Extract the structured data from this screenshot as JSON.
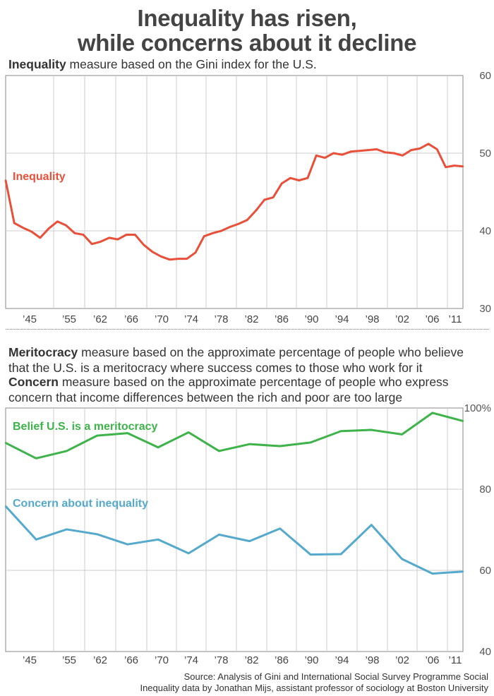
{
  "title_lines": [
    "Inequality has risen,",
    "while concerns about it decline"
  ],
  "top_subtitle": {
    "bold": "Inequality",
    "rest": " measure based on the Gini index for the U.S."
  },
  "bottom_subtitle_1": {
    "bold": "Meritocracy",
    "rest": " measure based on the approximate percentage of people who believe",
    "line2": "that the U.S. is a meritocracy where success comes to those who work for it"
  },
  "bottom_subtitle_2": {
    "bold": "Concern",
    "rest": " measure based on the approximate percentage of people who express",
    "line2": "concern that income differences between the rich and poor are too large"
  },
  "source_lines": [
    "Source: Analysis of Gini and International Social Survey Programme Social",
    "Inequality data by Jonathan Mijs, assistant professor of sociology at Boston University"
  ],
  "colors": {
    "inequality": "#e8503a",
    "meritocracy": "#3db34a",
    "concern": "#55a9cc",
    "grid": "#cccccc"
  },
  "chart_data": [
    {
      "type": "line",
      "xlabels": [
        "'45",
        "'55",
        "'62",
        "'66",
        "'70",
        "'74",
        "'78",
        "'82",
        "'86",
        "'90",
        "'94",
        "'98",
        "'02",
        "'06",
        "'11"
      ],
      "ylim": [
        30,
        60
      ],
      "yticks": [
        "30",
        "40",
        "50",
        "60"
      ],
      "series": [
        {
          "name": "Inequality",
          "color": "#e8503a",
          "values": [
            46.5,
            41.0,
            40.4,
            39.9,
            39.1,
            40.3,
            41.2,
            40.7,
            39.7,
            39.5,
            38.3,
            38.6,
            39.1,
            38.9,
            39.5,
            39.5,
            38.2,
            37.3,
            36.7,
            36.3,
            36.4,
            36.4,
            37.2,
            39.3,
            39.7,
            40.0,
            40.5,
            40.9,
            41.4,
            42.6,
            44.0,
            44.3,
            46.1,
            46.8,
            46.5,
            46.8,
            49.7,
            49.4,
            50.0,
            49.8,
            50.2,
            50.3,
            50.4,
            50.5,
            50.1,
            50.0,
            49.7,
            50.4,
            50.6,
            51.2,
            50.5,
            48.2,
            48.4,
            48.3
          ]
        }
      ]
    },
    {
      "type": "line",
      "xlabels": [
        "'45",
        "'55",
        "'62",
        "'66",
        "'70",
        "'74",
        "'78",
        "'82",
        "'86",
        "'90",
        "'94",
        "'98",
        "'02",
        "'06",
        "'11"
      ],
      "ylim": [
        40,
        100
      ],
      "yticks": [
        "40",
        "60",
        "80",
        "100%"
      ],
      "series": [
        {
          "name": "Belief U.S. is a meritocracy",
          "color": "#3db34a",
          "values": [
            91.4,
            87.6,
            89.4,
            93.2,
            93.8,
            90.3,
            94.0,
            89.4,
            91.1,
            90.6,
            91.5,
            94.3,
            94.6,
            93.5,
            98.8,
            96.8
          ]
        },
        {
          "name": "Concern about inequality",
          "color": "#55a9cc",
          "values": [
            75.8,
            67.6,
            70.1,
            68.9,
            66.4,
            67.6,
            64.2,
            68.8,
            67.2,
            70.3,
            63.9,
            64.0,
            71.2,
            62.8,
            59.2,
            59.7
          ]
        }
      ]
    }
  ]
}
